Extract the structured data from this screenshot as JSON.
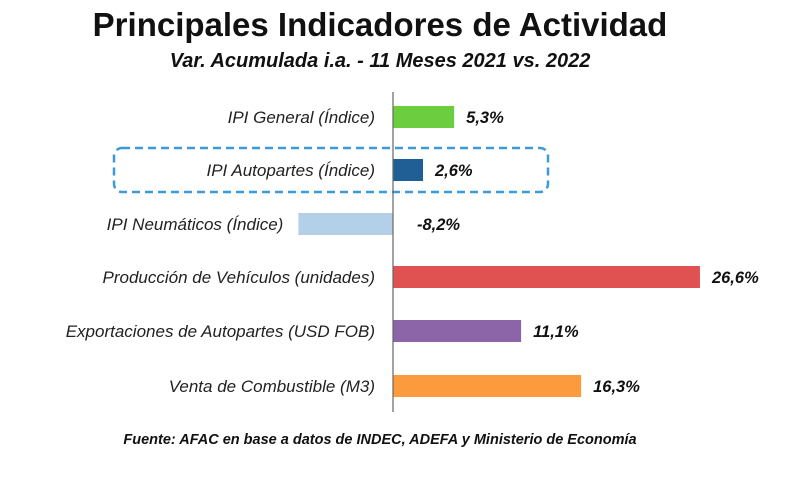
{
  "chart_data": {
    "type": "bar",
    "orientation": "horizontal",
    "title": "Principales Indicadores de Actividad",
    "subtitle": "Var. Acumulada i.a. - 11 Meses 2021 vs. 2022",
    "source": "Fuente: AFAC en base a datos de INDEC, ADEFA y Ministerio de Economía",
    "categories": [
      "IPI General (Índice)",
      "IPI Autopartes (Índice)",
      "IPI Neumáticos (Índice)",
      "Producción de Vehículos (unidades)",
      "Exportaciones de Autopartes (USD FOB)",
      "Venta de Combustible (M3)"
    ],
    "values": [
      5.3,
      2.6,
      -8.2,
      26.6,
      11.1,
      16.3
    ],
    "data_labels": [
      "5,3%",
      "2,6%",
      "-8,2%",
      "26,6%",
      "11,1%",
      "16,3%"
    ],
    "colors": [
      "#6cce3f",
      "#1f5f96",
      "#b4d0e8",
      "#e05252",
      "#8c64a8",
      "#fc9a3e"
    ],
    "highlighted_category": "IPI Autopartes (Índice)",
    "highlight_color": "#3d9ad8",
    "xlabel": "",
    "ylabel": "",
    "grid": false,
    "legend": "none"
  }
}
